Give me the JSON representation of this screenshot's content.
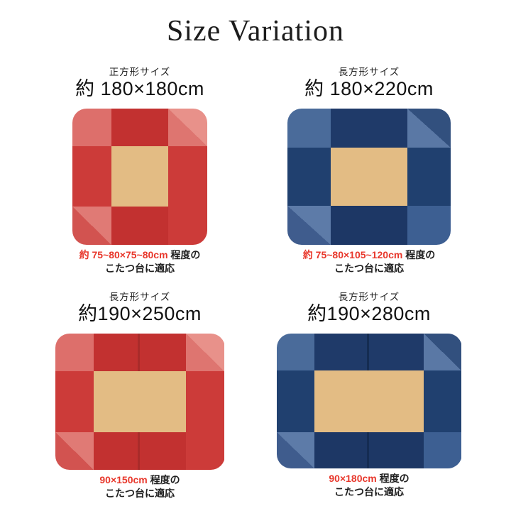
{
  "title": "Size Variation",
  "quadrants": [
    {
      "type_label": "正方形サイズ",
      "size_label": "約 180×180cm",
      "fit_highlight": "約 75~80×75~80cm",
      "fit_rest": " 程度の",
      "fit_line2": "こたつ台に適応"
    },
    {
      "type_label": "長方形サイズ",
      "size_label": "約 180×220cm",
      "fit_highlight": "約 75~80×105~120cm",
      "fit_rest": " 程度の",
      "fit_line2": "こたつ台に適応"
    },
    {
      "type_label": "長方形サイズ",
      "size_label": "約190×250cm",
      "fit_highlight": "90×150cm",
      "fit_rest": " 程度の",
      "fit_line2": "こたつ台に適応"
    },
    {
      "type_label": "長方形サイズ",
      "size_label": "約190×280cm",
      "fit_highlight": "90×180cm",
      "fit_rest": " 程度の",
      "fit_line2": "こたつ台に適応"
    }
  ],
  "colors": {
    "tan": "#e3bc84",
    "caption_highlight": "#e8372b",
    "heading_text": "#1a1a1a",
    "red": {
      "light": "#dd6f6b",
      "top": "#c23130",
      "bottom": "#c23130",
      "side": "#cc3b39",
      "corner-br": "#cc3b39",
      "tr-inner": "#de7570",
      "tr-outer": "#e8918a",
      "bl-outer": "#d25350",
      "bl-inner": "#e07a75",
      "seam": "#a92b2a"
    },
    "blue": {
      "light": "#4a6b9a",
      "top": "#1f3a69",
      "bottom": "#1d3765",
      "side": "#20406f",
      "corner-br": "#3d5f92",
      "tr-inner": "#5a78a5",
      "tr-outer": "#32507e",
      "bl-outer": "#3f5c8d",
      "bl-inner": "#5d7ba8",
      "seam": "#152c52"
    }
  }
}
